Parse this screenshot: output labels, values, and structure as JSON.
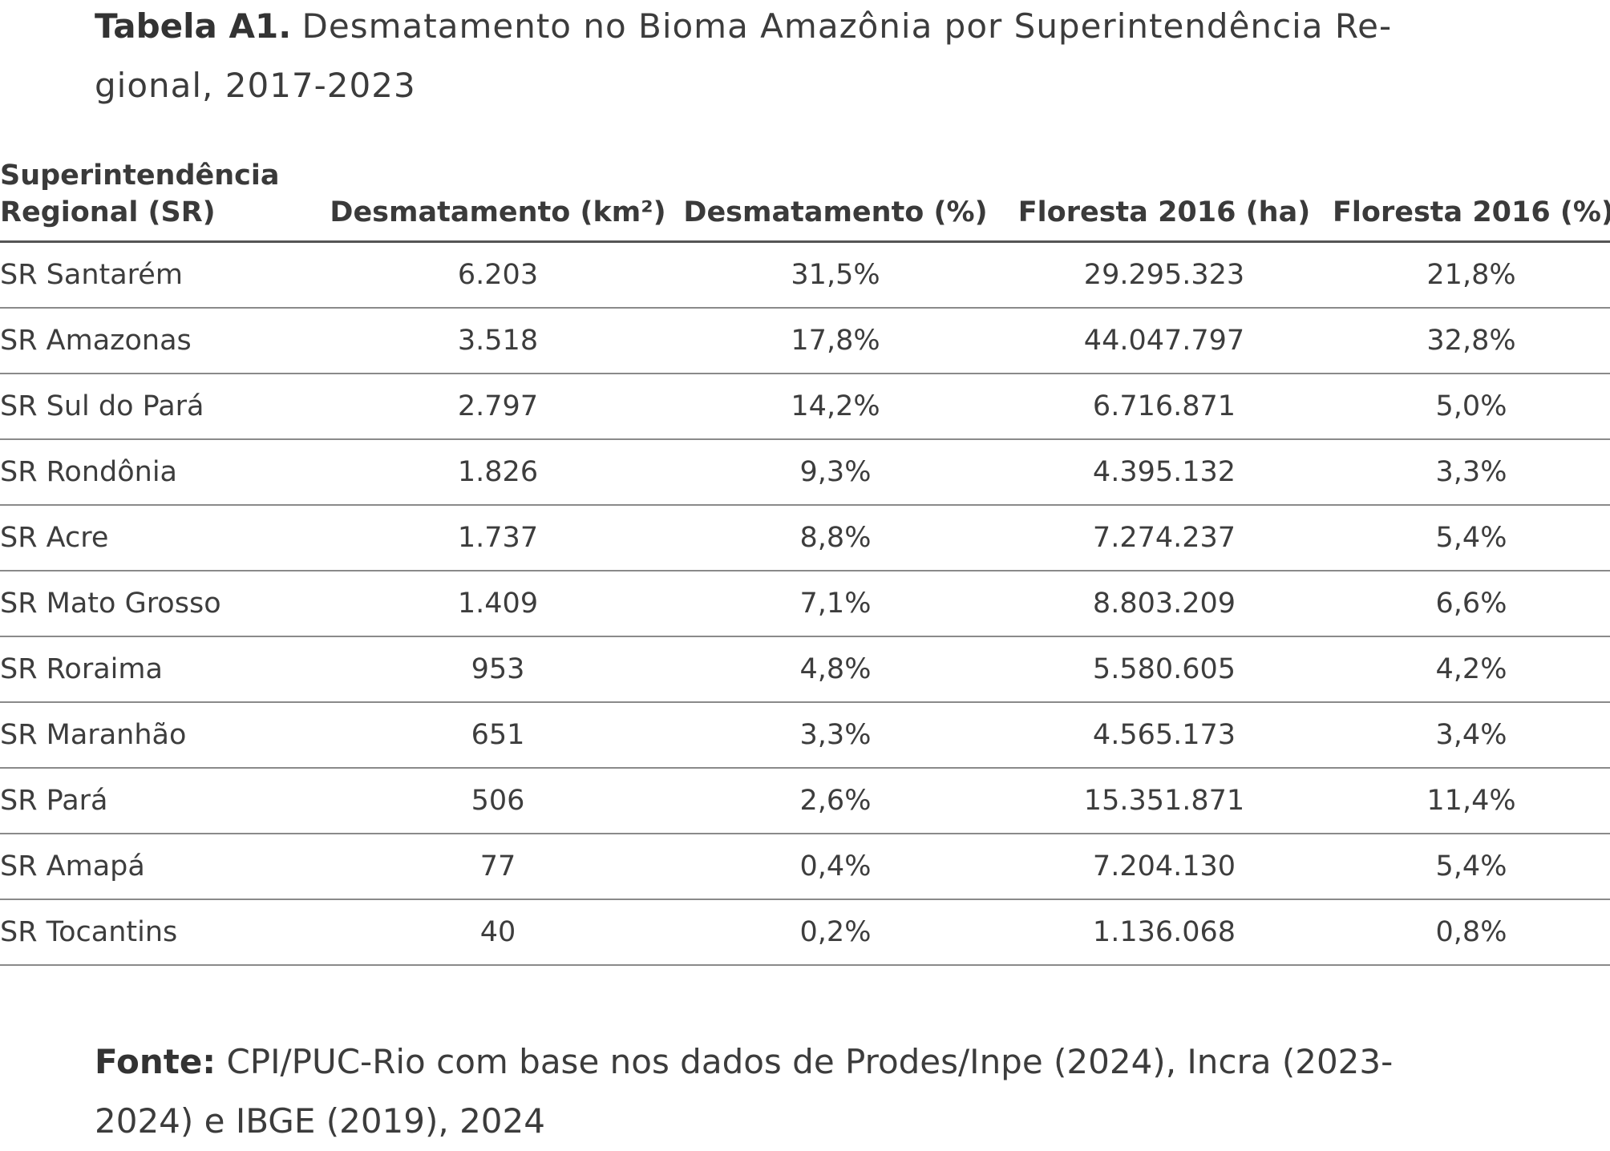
{
  "title": {
    "prefix": "Tabela A1.",
    "line1": "Desmatamento no Bioma Amazônia por Superintendência Re-",
    "line2": "gional, 2017-2023"
  },
  "table": {
    "headers": {
      "sr_line1": "Superintendência",
      "sr_line2": "Regional (SR)",
      "desmat_km2": "Desmatamento (km²)",
      "desmat_pct": "Desmatamento (%)",
      "floresta_ha": "Floresta 2016 (ha)",
      "floresta_pct": "Floresta 2016 (%)"
    },
    "rows": [
      {
        "sr": "SR Santarém",
        "desmat_km2": "6.203",
        "desmat_pct": "31,5%",
        "floresta_ha": "29.295.323",
        "floresta_pct": "21,8%"
      },
      {
        "sr": "SR Amazonas",
        "desmat_km2": "3.518",
        "desmat_pct": "17,8%",
        "floresta_ha": "44.047.797",
        "floresta_pct": "32,8%"
      },
      {
        "sr": "SR Sul do Pará",
        "desmat_km2": "2.797",
        "desmat_pct": "14,2%",
        "floresta_ha": "6.716.871",
        "floresta_pct": "5,0%"
      },
      {
        "sr": "SR Rondônia",
        "desmat_km2": "1.826",
        "desmat_pct": "9,3%",
        "floresta_ha": "4.395.132",
        "floresta_pct": "3,3%"
      },
      {
        "sr": "SR Acre",
        "desmat_km2": "1.737",
        "desmat_pct": "8,8%",
        "floresta_ha": "7.274.237",
        "floresta_pct": "5,4%"
      },
      {
        "sr": "SR Mato Grosso",
        "desmat_km2": "1.409",
        "desmat_pct": "7,1%",
        "floresta_ha": "8.803.209",
        "floresta_pct": "6,6%"
      },
      {
        "sr": "SR Roraima",
        "desmat_km2": "953",
        "desmat_pct": "4,8%",
        "floresta_ha": "5.580.605",
        "floresta_pct": "4,2%"
      },
      {
        "sr": "SR Maranhão",
        "desmat_km2": "651",
        "desmat_pct": "3,3%",
        "floresta_ha": "4.565.173",
        "floresta_pct": "3,4%"
      },
      {
        "sr": "SR Pará",
        "desmat_km2": "506",
        "desmat_pct": "2,6%",
        "floresta_ha": "15.351.871",
        "floresta_pct": "11,4%"
      },
      {
        "sr": "SR Amapá",
        "desmat_km2": "77",
        "desmat_pct": "0,4%",
        "floresta_ha": "7.204.130",
        "floresta_pct": "5,4%"
      },
      {
        "sr": "SR Tocantins",
        "desmat_km2": "40",
        "desmat_pct": "0,2%",
        "floresta_ha": "1.136.068",
        "floresta_pct": "0,8%"
      }
    ]
  },
  "source": {
    "label": "Fonte:",
    "line1": "CPI/PUC-Rio com base nos dados de Prodes/Inpe (2024), Incra (2023-",
    "line2": "2024) e IBGE (2019), 2024"
  }
}
